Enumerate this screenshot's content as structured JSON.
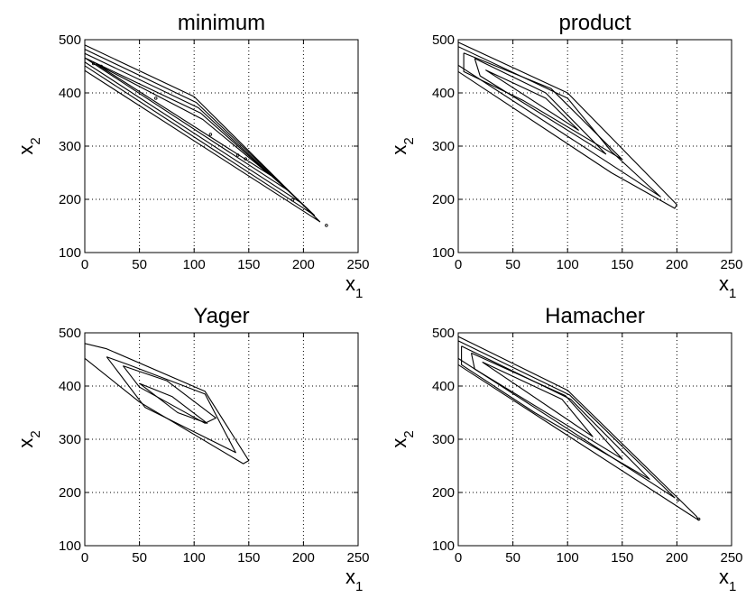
{
  "chart_data": [
    {
      "type": "contour",
      "title": "minimum",
      "xlabel": "x",
      "xlabel_sub": "1",
      "ylabel": "x",
      "ylabel_sub": "2",
      "xlim": [
        0,
        250
      ],
      "ylim": [
        100,
        500
      ],
      "xticks": [
        "0",
        "50",
        "100",
        "150",
        "200",
        "250"
      ],
      "yticks": [
        "100",
        "200",
        "300",
        "400",
        "500"
      ],
      "grid": true,
      "contours": [
        [
          [
            0,
            490
          ],
          [
            100,
            393
          ],
          [
            215,
            158
          ],
          [
            0,
            442
          ],
          [
            0,
            490
          ]
        ],
        [
          [
            0,
            482
          ],
          [
            102,
            382
          ],
          [
            210,
            170
          ],
          [
            0,
            451
          ],
          [
            0,
            482
          ]
        ],
        [
          [
            0,
            474
          ],
          [
            104,
            372
          ],
          [
            198,
            193
          ],
          [
            0,
            458
          ],
          [
            0,
            474
          ]
        ],
        [
          [
            0,
            466
          ],
          [
            106,
            362
          ],
          [
            185,
            218
          ],
          [
            0,
            466
          ]
        ],
        [
          [
            10,
            455
          ],
          [
            108,
            350
          ],
          [
            170,
            245
          ],
          [
            10,
            455
          ]
        ]
      ],
      "points": [
        [
          8,
          455
        ],
        [
          15,
          450
        ],
        [
          65,
          390
        ],
        [
          115,
          322
        ],
        [
          140,
          283
        ],
        [
          147,
          276
        ],
        [
          190,
          199
        ],
        [
          221,
          151
        ]
      ]
    },
    {
      "type": "contour",
      "title": "product",
      "xlabel": "x",
      "xlabel_sub": "1",
      "ylabel": "x",
      "ylabel_sub": "2",
      "xlim": [
        0,
        250
      ],
      "ylim": [
        100,
        500
      ],
      "xticks": [
        "0",
        "50",
        "100",
        "150",
        "200",
        "250"
      ],
      "yticks": [
        "100",
        "200",
        "300",
        "400",
        "500"
      ],
      "grid": true,
      "contours": [
        [
          [
            0,
            495
          ],
          [
            100,
            400
          ],
          [
            200,
            190
          ],
          [
            198,
            183
          ],
          [
            140,
            250
          ],
          [
            0,
            440
          ],
          [
            0,
            495
          ]
        ],
        [
          [
            0,
            487
          ],
          [
            100,
            390
          ],
          [
            140,
            290
          ],
          [
            185,
            205
          ],
          [
            0,
            452
          ],
          [
            0,
            487
          ]
        ],
        [
          [
            5,
            475
          ],
          [
            85,
            408
          ],
          [
            150,
            275
          ],
          [
            60,
            385
          ],
          [
            5,
            440
          ],
          [
            5,
            475
          ]
        ],
        [
          [
            15,
            465
          ],
          [
            80,
            400
          ],
          [
            135,
            285
          ],
          [
            20,
            432
          ],
          [
            15,
            465
          ]
        ],
        [
          [
            25,
            443
          ],
          [
            80,
            390
          ],
          [
            110,
            330
          ],
          [
            25,
            443
          ]
        ]
      ],
      "points": []
    },
    {
      "type": "contour",
      "title": "Yager",
      "xlabel": "x",
      "xlabel_sub": "1",
      "ylabel": "x",
      "ylabel_sub": "2",
      "xlim": [
        0,
        250
      ],
      "ylim": [
        100,
        500
      ],
      "xticks": [
        "0",
        "50",
        "100",
        "150",
        "200",
        "250"
      ],
      "yticks": [
        "100",
        "200",
        "300",
        "400",
        "500"
      ],
      "grid": true,
      "contours": [
        [
          [
            0,
            480
          ],
          [
            20,
            470
          ],
          [
            110,
            390
          ],
          [
            150,
            260
          ],
          [
            145,
            254
          ],
          [
            50,
            370
          ],
          [
            0,
            452
          ],
          [
            0,
            480
          ]
        ],
        [
          [
            20,
            455
          ],
          [
            40,
            440
          ],
          [
            110,
            385
          ],
          [
            138,
            275
          ],
          [
            55,
            360
          ],
          [
            20,
            455
          ]
        ],
        [
          [
            35,
            438
          ],
          [
            75,
            410
          ],
          [
            120,
            340
          ],
          [
            110,
            330
          ],
          [
            50,
            398
          ],
          [
            35,
            438
          ]
        ],
        [
          [
            50,
            405
          ],
          [
            80,
            380
          ],
          [
            112,
            330
          ],
          [
            85,
            350
          ],
          [
            50,
            405
          ]
        ]
      ],
      "points": []
    },
    {
      "type": "contour",
      "title": "Hamacher",
      "xlabel": "x",
      "xlabel_sub": "1",
      "ylabel": "x",
      "ylabel_sub": "2",
      "xlim": [
        0,
        250
      ],
      "ylim": [
        100,
        500
      ],
      "xticks": [
        "0",
        "50",
        "100",
        "150",
        "200",
        "250"
      ],
      "yticks": [
        "100",
        "200",
        "300",
        "400",
        "500"
      ],
      "grid": true,
      "contours": [
        [
          [
            0,
            493
          ],
          [
            100,
            392
          ],
          [
            218,
            155
          ],
          [
            220,
            148
          ],
          [
            213,
            157
          ],
          [
            0,
            440
          ],
          [
            0,
            493
          ]
        ],
        [
          [
            0,
            485
          ],
          [
            102,
            383
          ],
          [
            198,
            190
          ],
          [
            0,
            452
          ],
          [
            0,
            485
          ]
        ],
        [
          [
            3,
            475
          ],
          [
            103,
            375
          ],
          [
            175,
            225
          ],
          [
            70,
            350
          ],
          [
            3,
            440
          ],
          [
            3,
            475
          ]
        ],
        [
          [
            12,
            462
          ],
          [
            98,
            382
          ],
          [
            150,
            263
          ],
          [
            15,
            432
          ],
          [
            12,
            462
          ]
        ],
        [
          [
            22,
            445
          ],
          [
            95,
            375
          ],
          [
            123,
            305
          ],
          [
            22,
            445
          ]
        ]
      ],
      "points": [
        [
          201,
          186
        ],
        [
          220,
          150
        ]
      ]
    }
  ]
}
